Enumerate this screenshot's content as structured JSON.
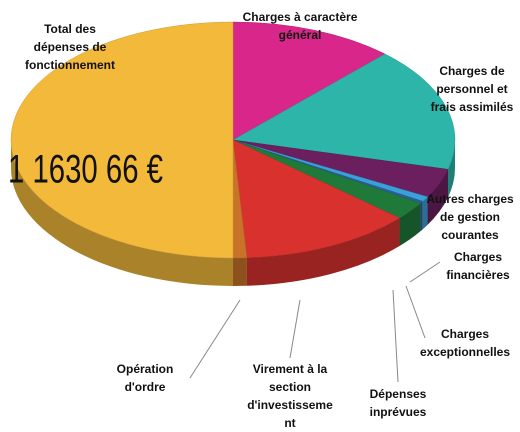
{
  "chart_data": {
    "type": "pie",
    "annotation": "1 1630 66 €",
    "categories": [
      [
        "Charges à caractère",
        "général"
      ],
      [
        "Charges de",
        "personnel et",
        "frais assimilés"
      ],
      [
        "Autres charges",
        "de gestion",
        "courantes"
      ],
      [
        "Charges",
        "financières"
      ],
      [
        "Charges",
        "exceptionnelles"
      ],
      [
        "Dépenses",
        "inprévues"
      ],
      [
        "Virement à la",
        "section",
        "d'investisseme",
        "nt"
      ],
      [
        "Opération",
        "d'ordre"
      ],
      [
        "Total des",
        "dépenses de",
        "fonctionnement"
      ]
    ],
    "values": [
      12,
      17,
      4,
      0.7,
      0.3,
      2.5,
      12.5,
      1,
      50
    ],
    "colors": [
      "#d9268a",
      "#2cb5a8",
      "#6b1f5e",
      "#3aa0d8",
      "#2b5da0",
      "#1f7a3a",
      "#d9322e",
      "#c9732a",
      "#f2b93b"
    ]
  }
}
